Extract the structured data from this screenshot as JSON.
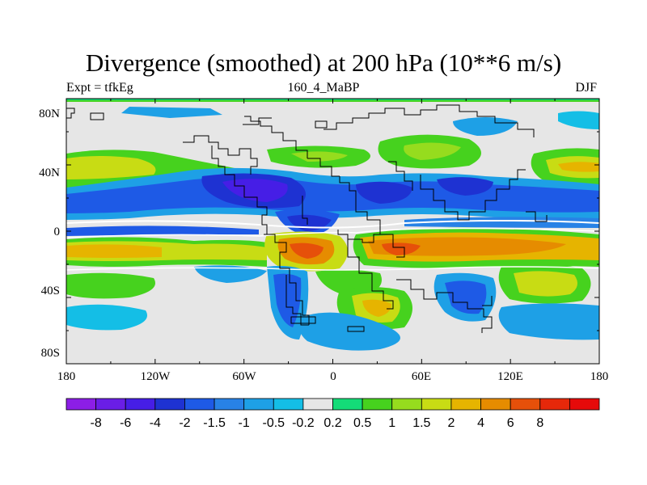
{
  "title": "Divergence (smoothed) at 200 hPa (10**6 m/s)",
  "subtitle_left": "Expt = tfkEg",
  "subtitle_center": "160_4_MaBP",
  "subtitle_right": "DJF",
  "lon_labels": [
    "180",
    "120W",
    "60W",
    "0",
    "60E",
    "120E",
    "180"
  ],
  "lat_labels": [
    "80N",
    "40N",
    "0",
    "40S",
    "80S"
  ],
  "colorbar": {
    "colors": [
      "#8c1ee6",
      "#6a1ee6",
      "#461ee6",
      "#1e32d2",
      "#1e5ae6",
      "#2882e6",
      "#1ea0e6",
      "#14bee6",
      "#e6e6e6",
      "#14dc78",
      "#46d21e",
      "#96dc1e",
      "#c8dc14",
      "#e6b400",
      "#e68c00",
      "#e6500a",
      "#e6280a",
      "#e60a0a"
    ],
    "labels": [
      "-8",
      "-6",
      "-4",
      "-2",
      "-1.5",
      "-1",
      "-0.5",
      "-0.2",
      "0.2",
      "0.5",
      "1",
      "1.5",
      "2",
      "4",
      "6",
      "8"
    ]
  }
}
